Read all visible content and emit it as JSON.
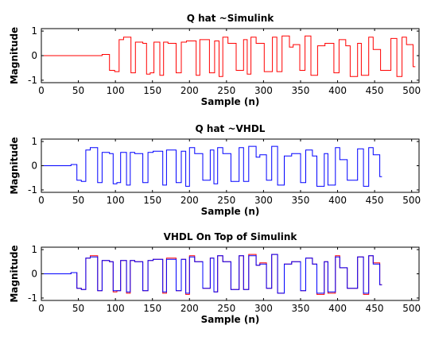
{
  "chart_data": [
    {
      "type": "line",
      "title": "Q hat ~Simulink",
      "xlabel": "Sample (n)",
      "ylabel": "Magnitude",
      "xlim": [
        0,
        510
      ],
      "ylim": [
        -1.1,
        1.1
      ],
      "xticks": [
        "0",
        "50",
        "100",
        "150",
        "200",
        "250",
        "300",
        "350",
        "400",
        "450",
        "500"
      ],
      "yticks": [
        "1",
        "0",
        "-1"
      ],
      "series": [
        {
          "color": "#ff0000",
          "x": [
            0,
            82,
            82,
            92,
            92,
            99,
            99,
            105,
            105,
            111,
            111,
            121,
            121,
            127,
            127,
            137,
            137,
            142,
            142,
            147,
            147,
            152,
            152,
            160,
            160,
            165,
            165,
            171,
            171,
            182,
            182,
            189,
            189,
            196,
            196,
            209,
            209,
            214,
            214,
            227,
            227,
            234,
            234,
            240,
            240,
            245,
            245,
            252,
            252,
            263,
            263,
            273,
            273,
            278,
            278,
            283,
            283,
            290,
            290,
            301,
            301,
            312,
            312,
            318,
            318,
            325,
            325,
            335,
            335,
            340,
            340,
            349,
            349,
            356,
            356,
            364,
            364,
            373,
            373,
            383,
            383,
            395,
            395,
            402,
            402,
            411,
            411,
            417,
            417,
            427,
            427,
            432,
            432,
            442,
            442,
            448,
            448,
            458,
            458,
            465,
            465,
            472,
            472,
            480,
            480,
            487,
            487,
            493,
            493,
            502,
            502,
            505
          ],
          "y": [
            0,
            0,
            0.05,
            0.05,
            -0.6,
            -0.6,
            -0.65,
            -0.65,
            0.65,
            0.65,
            0.75,
            0.75,
            -0.7,
            -0.7,
            0.55,
            0.55,
            0.5,
            0.5,
            -0.75,
            -0.75,
            -0.7,
            -0.7,
            0.55,
            0.55,
            -0.8,
            -0.8,
            0.55,
            0.55,
            0.5,
            0.5,
            -0.7,
            -0.7,
            0.55,
            0.55,
            0.6,
            0.6,
            -0.8,
            -0.8,
            0.65,
            0.65,
            -0.7,
            -0.7,
            0.6,
            0.6,
            -0.85,
            -0.85,
            0.75,
            0.75,
            0.5,
            0.5,
            -0.6,
            -0.6,
            0.65,
            0.65,
            -0.75,
            -0.75,
            0.75,
            0.75,
            0.5,
            0.5,
            -0.65,
            -0.65,
            0.75,
            0.75,
            -0.65,
            -0.65,
            0.8,
            0.8,
            0.35,
            0.35,
            0.45,
            0.45,
            -0.6,
            -0.6,
            0.8,
            0.8,
            -0.8,
            -0.8,
            0.4,
            0.4,
            0.5,
            0.5,
            -0.7,
            -0.7,
            0.65,
            0.65,
            0.4,
            0.4,
            -0.85,
            -0.85,
            0.5,
            0.5,
            -0.8,
            -0.8,
            0.75,
            0.75,
            0.25,
            0.25,
            -0.6,
            -0.6,
            -0.6,
            -0.6,
            0.7,
            0.7,
            -0.85,
            -0.85,
            0.75,
            0.75,
            0.45,
            0.45,
            -0.45,
            -0.45
          ]
        }
      ]
    },
    {
      "type": "line",
      "title": "Q hat ~VHDL",
      "xlabel": "Sample (n)",
      "ylabel": "Magnitude",
      "xlim": [
        0,
        510
      ],
      "ylim": [
        -1.1,
        1.1
      ],
      "xticks": [
        "0",
        "50",
        "100",
        "150",
        "200",
        "250",
        "300",
        "350",
        "400",
        "450",
        "500"
      ],
      "yticks": [
        "1",
        "0",
        "-1"
      ],
      "series": [
        {
          "color": "#0000ff",
          "x": [
            0,
            40,
            40,
            48,
            48,
            54,
            54,
            60,
            60,
            66,
            66,
            76,
            76,
            82,
            82,
            92,
            92,
            97,
            97,
            102,
            102,
            107,
            107,
            115,
            115,
            120,
            120,
            126,
            126,
            137,
            137,
            144,
            144,
            151,
            151,
            164,
            164,
            169,
            169,
            182,
            182,
            189,
            189,
            195,
            195,
            200,
            200,
            207,
            207,
            218,
            218,
            228,
            228,
            233,
            233,
            238,
            238,
            245,
            245,
            256,
            256,
            267,
            267,
            273,
            273,
            280,
            280,
            290,
            290,
            295,
            295,
            304,
            304,
            311,
            311,
            319,
            319,
            328,
            328,
            338,
            338,
            350,
            350,
            357,
            357,
            366,
            366,
            372,
            372,
            382,
            382,
            387,
            387,
            397,
            397,
            403,
            403,
            413,
            413,
            420,
            420,
            427,
            427,
            435,
            435,
            442,
            442,
            448,
            448,
            457,
            457,
            460
          ],
          "y": [
            0,
            0,
            0.05,
            0.05,
            -0.6,
            -0.6,
            -0.65,
            -0.65,
            0.65,
            0.65,
            0.75,
            0.75,
            -0.7,
            -0.7,
            0.55,
            0.55,
            0.5,
            0.5,
            -0.75,
            -0.75,
            -0.7,
            -0.7,
            0.55,
            0.55,
            -0.8,
            -0.8,
            0.55,
            0.55,
            0.5,
            0.5,
            -0.7,
            -0.7,
            0.55,
            0.55,
            0.6,
            0.6,
            -0.8,
            -0.8,
            0.65,
            0.65,
            -0.7,
            -0.7,
            0.6,
            0.6,
            -0.85,
            -0.85,
            0.75,
            0.75,
            0.5,
            0.5,
            -0.6,
            -0.6,
            0.65,
            0.65,
            -0.75,
            -0.75,
            0.75,
            0.75,
            0.5,
            0.5,
            -0.65,
            -0.65,
            0.75,
            0.75,
            -0.65,
            -0.65,
            0.8,
            0.8,
            0.35,
            0.35,
            0.45,
            0.45,
            -0.6,
            -0.6,
            0.8,
            0.8,
            -0.8,
            -0.8,
            0.4,
            0.4,
            0.5,
            0.5,
            -0.7,
            -0.7,
            0.65,
            0.65,
            0.4,
            0.4,
            -0.85,
            -0.85,
            0.5,
            0.5,
            -0.8,
            -0.8,
            0.75,
            0.75,
            0.25,
            0.25,
            -0.6,
            -0.6,
            -0.6,
            -0.6,
            0.7,
            0.7,
            -0.85,
            -0.85,
            0.75,
            0.75,
            0.45,
            0.45,
            -0.45,
            -0.45
          ]
        }
      ]
    },
    {
      "type": "line",
      "title": "VHDL On Top of Simulink",
      "xlabel": "Sample (n)",
      "ylabel": "Magnitude",
      "xlim": [
        0,
        510
      ],
      "ylim": [
        -1.1,
        1.1
      ],
      "xticks": [
        "0",
        "50",
        "100",
        "150",
        "200",
        "250",
        "300",
        "350",
        "400",
        "450",
        "500"
      ],
      "yticks": [
        "1",
        "0",
        "-1"
      ],
      "series": [
        {
          "color": "#ff0000",
          "x": [
            0,
            40,
            40,
            48,
            48,
            54,
            54,
            60,
            60,
            66,
            66,
            76,
            76,
            82,
            82,
            92,
            92,
            97,
            97,
            102,
            102,
            107,
            107,
            115,
            115,
            120,
            120,
            126,
            126,
            137,
            137,
            144,
            144,
            151,
            151,
            164,
            164,
            169,
            169,
            182,
            182,
            189,
            189,
            195,
            195,
            200,
            200,
            207,
            207,
            218,
            218,
            228,
            228,
            233,
            233,
            238,
            238,
            245,
            245,
            256,
            256,
            267,
            267,
            273,
            273,
            280,
            280,
            290,
            290,
            295,
            295,
            304,
            304,
            311,
            311,
            319,
            319,
            328,
            328,
            338,
            338,
            350,
            350,
            357,
            357,
            366,
            366,
            372,
            372,
            382,
            382,
            387,
            387,
            397,
            397,
            403,
            403,
            413,
            413,
            420,
            420,
            427,
            427,
            435,
            435,
            442,
            442,
            448,
            448,
            457,
            457,
            460
          ],
          "y": [
            0,
            0,
            0.05,
            0.05,
            -0.6,
            -0.6,
            -0.65,
            -0.65,
            0.65,
            0.65,
            0.75,
            0.75,
            -0.7,
            -0.7,
            0.55,
            0.55,
            0.5,
            0.5,
            -0.75,
            -0.75,
            -0.7,
            -0.7,
            0.55,
            0.55,
            -0.8,
            -0.8,
            0.55,
            0.55,
            0.5,
            0.5,
            -0.7,
            -0.7,
            0.55,
            0.55,
            0.6,
            0.6,
            -0.8,
            -0.8,
            0.65,
            0.65,
            -0.7,
            -0.7,
            0.6,
            0.6,
            -0.85,
            -0.85,
            0.75,
            0.75,
            0.5,
            0.5,
            -0.6,
            -0.6,
            0.65,
            0.65,
            -0.75,
            -0.75,
            0.75,
            0.75,
            0.5,
            0.5,
            -0.65,
            -0.65,
            0.75,
            0.75,
            -0.65,
            -0.65,
            0.8,
            0.8,
            0.35,
            0.35,
            0.45,
            0.45,
            -0.6,
            -0.6,
            0.8,
            0.8,
            -0.8,
            -0.8,
            0.4,
            0.4,
            0.5,
            0.5,
            -0.7,
            -0.7,
            0.65,
            0.65,
            0.4,
            0.4,
            -0.85,
            -0.85,
            0.5,
            0.5,
            -0.8,
            -0.8,
            0.75,
            0.75,
            0.25,
            0.25,
            -0.6,
            -0.6,
            -0.6,
            -0.6,
            0.7,
            0.7,
            -0.85,
            -0.85,
            0.75,
            0.75,
            0.45,
            0.45,
            -0.45,
            -0.45
          ]
        },
        {
          "color": "#0000ff",
          "x": [
            0,
            40,
            40,
            48,
            48,
            54,
            54,
            60,
            60,
            66,
            66,
            76,
            76,
            82,
            82,
            92,
            92,
            97,
            97,
            102,
            102,
            107,
            107,
            115,
            115,
            120,
            120,
            126,
            126,
            137,
            137,
            144,
            144,
            151,
            151,
            164,
            164,
            169,
            169,
            182,
            182,
            189,
            189,
            195,
            195,
            200,
            200,
            207,
            207,
            218,
            218,
            228,
            228,
            233,
            233,
            238,
            238,
            245,
            245,
            256,
            256,
            267,
            267,
            273,
            273,
            280,
            280,
            290,
            290,
            295,
            295,
            304,
            304,
            311,
            311,
            319,
            319,
            328,
            328,
            338,
            338,
            350,
            350,
            357,
            357,
            366,
            366,
            372,
            372,
            382,
            382,
            387,
            387,
            397,
            397,
            403,
            403,
            413,
            413,
            420,
            420,
            427,
            427,
            435,
            435,
            442,
            442,
            448,
            448,
            457,
            457,
            460
          ],
          "y": [
            0,
            0,
            0.05,
            0.05,
            -0.6,
            -0.6,
            -0.65,
            -0.65,
            0.65,
            0.65,
            0.7,
            0.7,
            -0.7,
            -0.7,
            0.55,
            0.55,
            0.5,
            0.5,
            -0.7,
            -0.7,
            -0.7,
            -0.7,
            0.55,
            0.55,
            -0.75,
            -0.75,
            0.55,
            0.55,
            0.5,
            0.5,
            -0.7,
            -0.7,
            0.55,
            0.55,
            0.6,
            0.6,
            -0.75,
            -0.75,
            0.6,
            0.6,
            -0.7,
            -0.7,
            0.6,
            0.6,
            -0.8,
            -0.8,
            0.7,
            0.7,
            0.5,
            0.5,
            -0.6,
            -0.6,
            0.65,
            0.65,
            -0.75,
            -0.75,
            0.75,
            0.75,
            0.5,
            0.5,
            -0.65,
            -0.65,
            0.75,
            0.75,
            -0.65,
            -0.65,
            0.75,
            0.75,
            0.35,
            0.35,
            0.4,
            0.4,
            -0.6,
            -0.6,
            0.8,
            0.8,
            -0.8,
            -0.8,
            0.4,
            0.4,
            0.5,
            0.5,
            -0.7,
            -0.7,
            0.65,
            0.65,
            0.4,
            0.4,
            -0.8,
            -0.8,
            0.5,
            0.5,
            -0.75,
            -0.75,
            0.7,
            0.7,
            0.25,
            0.25,
            -0.6,
            -0.6,
            -0.6,
            -0.6,
            0.7,
            0.7,
            -0.8,
            -0.8,
            0.75,
            0.75,
            0.4,
            0.4,
            -0.45,
            -0.45
          ]
        }
      ]
    }
  ]
}
